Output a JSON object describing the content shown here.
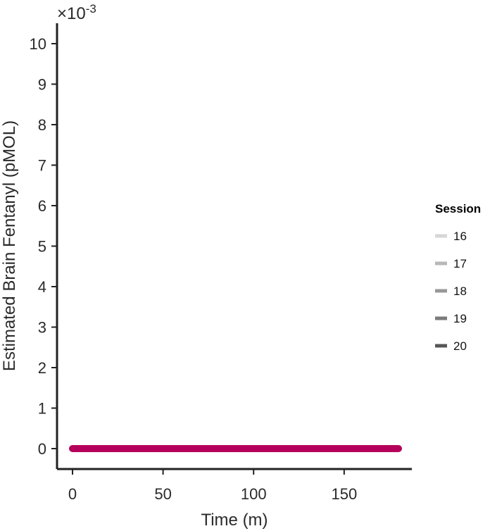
{
  "chart_data": {
    "type": "line",
    "xlabel": "Time (m)",
    "ylabel": "Estimated Brain Fentanyl (pMOL)",
    "y_multiplier": "×10",
    "y_exponent": "-3",
    "xlim": [
      -5,
      188
    ],
    "ylim": [
      -0.5,
      10.5
    ],
    "x_ticks": [
      0,
      50,
      100,
      150
    ],
    "y_ticks": [
      0,
      1,
      2,
      3,
      4,
      5,
      6,
      7,
      8,
      9,
      10
    ],
    "grid": false,
    "legend_placement": "right",
    "legend_title": "Session",
    "legend": [
      {
        "name": "16",
        "color": "#d6d6d6"
      },
      {
        "name": "17",
        "color": "#b7b7b7"
      },
      {
        "name": "18",
        "color": "#989898"
      },
      {
        "name": "19",
        "color": "#7a7a7a"
      },
      {
        "name": "20",
        "color": "#565656"
      }
    ],
    "series": [
      {
        "color": "#b5005b",
        "x": [
          0,
          180
        ],
        "y": [
          0,
          0
        ]
      }
    ]
  }
}
